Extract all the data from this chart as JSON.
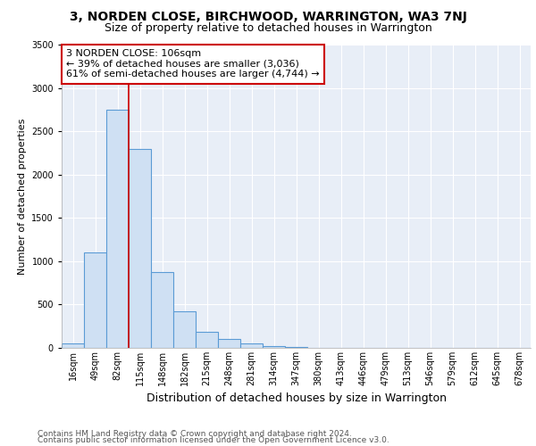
{
  "title1": "3, NORDEN CLOSE, BIRCHWOOD, WARRINGTON, WA3 7NJ",
  "title2": "Size of property relative to detached houses in Warrington",
  "xlabel": "Distribution of detached houses by size in Warrington",
  "ylabel": "Number of detached properties",
  "categories": [
    "16sqm",
    "49sqm",
    "82sqm",
    "115sqm",
    "148sqm",
    "182sqm",
    "215sqm",
    "248sqm",
    "281sqm",
    "314sqm",
    "347sqm",
    "380sqm",
    "413sqm",
    "446sqm",
    "479sqm",
    "513sqm",
    "546sqm",
    "579sqm",
    "612sqm",
    "645sqm",
    "678sqm"
  ],
  "values": [
    50,
    1100,
    2750,
    2300,
    875,
    420,
    190,
    100,
    50,
    25,
    10,
    5,
    3,
    2,
    0,
    0,
    0,
    0,
    0,
    0,
    0
  ],
  "bar_color": "#cfe0f3",
  "bar_edge_color": "#5b9bd5",
  "bar_linewidth": 0.8,
  "red_line_x": 2.5,
  "annotation_text": "3 NORDEN CLOSE: 106sqm\n← 39% of detached houses are smaller (3,036)\n61% of semi-detached houses are larger (4,744) →",
  "annotation_box_color": "#ffffff",
  "annotation_box_edge": "#cc0000",
  "ylim": [
    0,
    3500
  ],
  "yticks": [
    0,
    500,
    1000,
    1500,
    2000,
    2500,
    3000,
    3500
  ],
  "grid_color": "#d0d8e8",
  "bg_color": "#e8eef7",
  "footer1": "Contains HM Land Registry data © Crown copyright and database right 2024.",
  "footer2": "Contains public sector information licensed under the Open Government Licence v3.0.",
  "title1_fontsize": 10,
  "title2_fontsize": 9,
  "xlabel_fontsize": 9,
  "ylabel_fontsize": 8,
  "tick_fontsize": 7,
  "annotation_fontsize": 8,
  "footer_fontsize": 6.5
}
